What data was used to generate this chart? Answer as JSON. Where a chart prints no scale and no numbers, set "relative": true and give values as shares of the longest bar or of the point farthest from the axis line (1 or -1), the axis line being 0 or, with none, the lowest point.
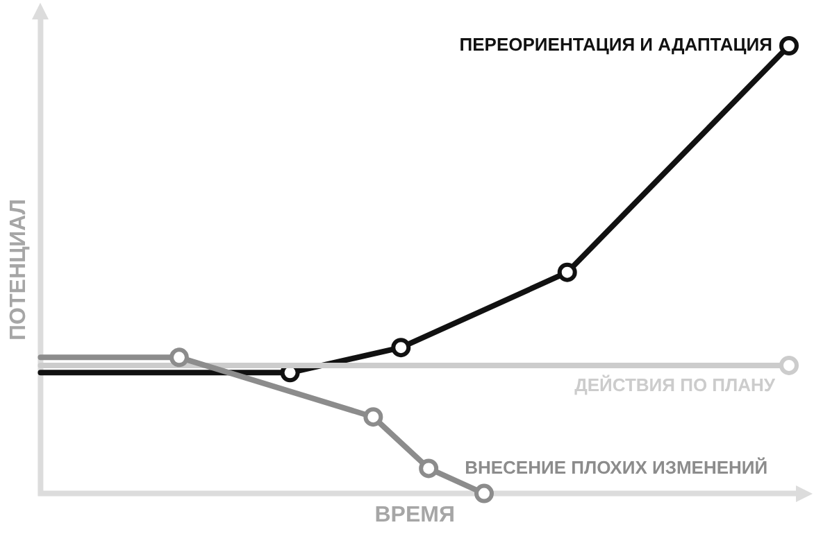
{
  "chart_data": {
    "type": "line",
    "relative": true,
    "xlabel": "ВРЕМЯ",
    "ylabel": "ПОТЕНЦИАЛ",
    "grid": false,
    "legend": "right",
    "marker": "circle",
    "line_style": "solid",
    "categories": [
      null,
      null,
      null,
      null,
      null,
      null,
      null,
      null,
      null,
      null,
      null,
      null,
      null,
      null,
      null,
      null,
      null,
      null,
      null,
      null,
      null,
      null,
      null,
      null,
      null,
      null,
      null,
      null
    ],
    "series": [
      {
        "name": "ПЕРЕОРИЕНТАЦИЯ И АДАПТАЦИЯ",
        "color": "#111111",
        "values": [
          0.27,
          null,
          null,
          null,
          null,
          null,
          null,
          null,
          null,
          0.27,
          null,
          null,
          null,
          0.326,
          null,
          null,
          null,
          null,
          null,
          0.494,
          null,
          null,
          null,
          null,
          null,
          null,
          null,
          1
        ]
      },
      {
        "name": "ДЕЙСТВИЯ ПО ПЛАНУ",
        "color": "#cccccc",
        "values": [
          0.286,
          null,
          null,
          null,
          null,
          null,
          null,
          null,
          null,
          null,
          null,
          null,
          null,
          null,
          null,
          null,
          null,
          null,
          null,
          null,
          null,
          null,
          null,
          null,
          null,
          null,
          null,
          0.286
        ]
      },
      {
        "name": "ВНЕСЕНИЕ ПЛОХИХ ИЗМЕНЕНИЙ",
        "color": "#8c8c8c",
        "values": [
          0.304,
          null,
          null,
          null,
          null,
          0.304,
          null,
          null,
          null,
          null,
          null,
          null,
          0.171,
          null,
          0.056,
          null,
          0,
          null,
          null,
          null,
          null,
          null,
          null,
          null,
          null,
          null,
          null,
          null
        ]
      }
    ]
  }
}
